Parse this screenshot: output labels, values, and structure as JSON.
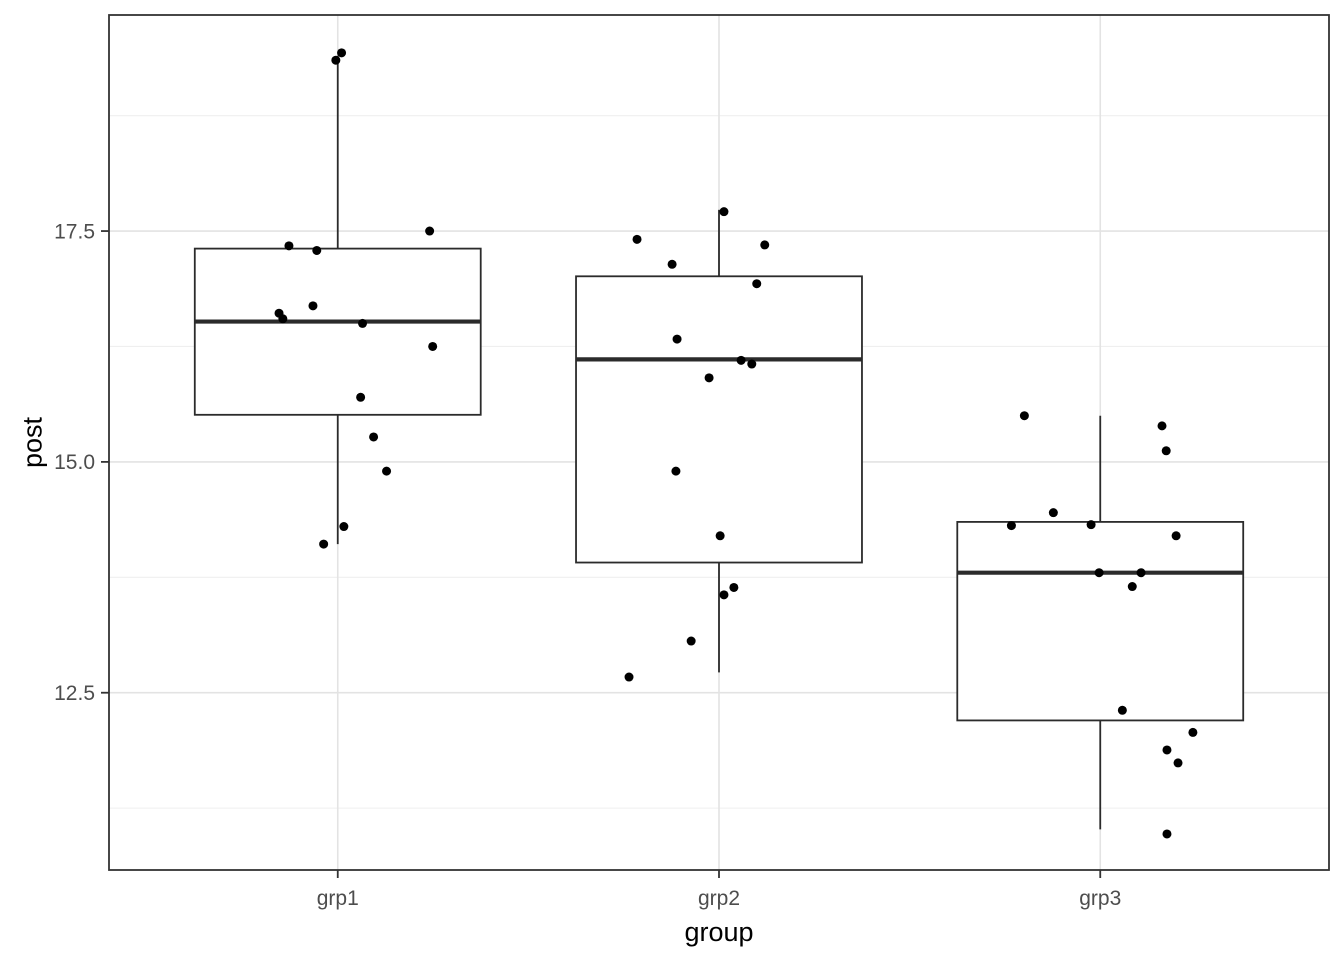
{
  "chart_data": {
    "type": "boxplot",
    "subtype": "boxplot_with_jittered_points",
    "title": "",
    "xlabel": "group",
    "ylabel": "post",
    "categories": [
      "grp1",
      "grp2",
      "grp3"
    ],
    "x_positions": [
      1,
      2,
      3
    ],
    "xlim": [
      0.4,
      3.6
    ],
    "ylim": [
      10.58,
      19.84
    ],
    "y_major_ticks": [
      12.5,
      15.0,
      17.5
    ],
    "y_tick_labels": [
      "12.5",
      "15.0",
      "17.5"
    ],
    "y_minor_gridlines": [
      11.25,
      13.75,
      16.25,
      18.75
    ],
    "grid": {
      "horizontal_major": true,
      "horizontal_minor": true,
      "vertical_major": true,
      "vertical_minor": false
    },
    "legend": "none",
    "box_width": 0.75,
    "boxes": [
      {
        "group": "grp1",
        "x": 1,
        "lower_whisker": 14.11,
        "q1": 15.51,
        "median": 16.52,
        "q3": 17.31,
        "upper_whisker": 19.4
      },
      {
        "group": "grp2",
        "x": 2,
        "lower_whisker": 12.72,
        "q1": 13.91,
        "median": 16.11,
        "q3": 17.01,
        "upper_whisker": 17.73
      },
      {
        "group": "grp3",
        "x": 3,
        "lower_whisker": 11.02,
        "q1": 12.2,
        "median": 13.8,
        "q3": 14.35,
        "upper_whisker": 15.5
      }
    ],
    "points": [
      {
        "group": "grp1",
        "x": 1.01,
        "y": 19.43
      },
      {
        "group": "grp1",
        "x": 0.995,
        "y": 19.35
      },
      {
        "group": "grp1",
        "x": 1.241,
        "y": 17.5
      },
      {
        "group": "grp1",
        "x": 0.872,
        "y": 17.34
      },
      {
        "group": "grp1",
        "x": 0.945,
        "y": 17.29
      },
      {
        "group": "grp1",
        "x": 0.935,
        "y": 16.69
      },
      {
        "group": "grp1",
        "x": 0.846,
        "y": 16.61
      },
      {
        "group": "grp1",
        "x": 0.856,
        "y": 16.55
      },
      {
        "group": "grp1",
        "x": 1.065,
        "y": 16.5
      },
      {
        "group": "grp1",
        "x": 1.249,
        "y": 16.25
      },
      {
        "group": "grp1",
        "x": 1.06,
        "y": 15.7
      },
      {
        "group": "grp1",
        "x": 1.094,
        "y": 15.27
      },
      {
        "group": "grp1",
        "x": 1.128,
        "y": 14.9
      },
      {
        "group": "grp1",
        "x": 1.016,
        "y": 14.3
      },
      {
        "group": "grp1",
        "x": 0.963,
        "y": 14.11
      },
      {
        "group": "grp2",
        "x": 2.013,
        "y": 17.71
      },
      {
        "group": "grp2",
        "x": 1.785,
        "y": 17.41
      },
      {
        "group": "grp2",
        "x": 2.12,
        "y": 17.35
      },
      {
        "group": "grp2",
        "x": 1.877,
        "y": 17.14
      },
      {
        "group": "grp2",
        "x": 2.099,
        "y": 16.93
      },
      {
        "group": "grp2",
        "x": 1.89,
        "y": 16.33
      },
      {
        "group": "grp2",
        "x": 2.058,
        "y": 16.1
      },
      {
        "group": "grp2",
        "x": 2.086,
        "y": 16.06
      },
      {
        "group": "grp2",
        "x": 1.974,
        "y": 15.91
      },
      {
        "group": "grp2",
        "x": 1.887,
        "y": 14.9
      },
      {
        "group": "grp2",
        "x": 2.003,
        "y": 14.2
      },
      {
        "group": "grp2",
        "x": 2.039,
        "y": 13.64
      },
      {
        "group": "grp2",
        "x": 2.013,
        "y": 13.56
      },
      {
        "group": "grp2",
        "x": 1.927,
        "y": 13.06
      },
      {
        "group": "grp2",
        "x": 1.764,
        "y": 12.67
      },
      {
        "group": "grp3",
        "x": 2.801,
        "y": 15.5
      },
      {
        "group": "grp3",
        "x": 3.162,
        "y": 15.39
      },
      {
        "group": "grp3",
        "x": 3.173,
        "y": 15.12
      },
      {
        "group": "grp3",
        "x": 2.877,
        "y": 14.45
      },
      {
        "group": "grp3",
        "x": 2.976,
        "y": 14.32
      },
      {
        "group": "grp3",
        "x": 2.767,
        "y": 14.31
      },
      {
        "group": "grp3",
        "x": 3.199,
        "y": 14.2
      },
      {
        "group": "grp3",
        "x": 2.997,
        "y": 13.8
      },
      {
        "group": "grp3",
        "x": 3.107,
        "y": 13.8
      },
      {
        "group": "grp3",
        "x": 3.084,
        "y": 13.65
      },
      {
        "group": "grp3",
        "x": 3.058,
        "y": 12.31
      },
      {
        "group": "grp3",
        "x": 3.243,
        "y": 12.07
      },
      {
        "group": "grp3",
        "x": 3.175,
        "y": 11.88
      },
      {
        "group": "grp3",
        "x": 3.204,
        "y": 11.74
      },
      {
        "group": "grp3",
        "x": 3.175,
        "y": 10.97
      }
    ],
    "style": {
      "panel_background": "#FFFFFF",
      "figure_background": "#FFFFFF",
      "grid_major_color": "#E3E3E3",
      "grid_minor_color": "#EFEFEF",
      "panel_border_color": "#333333",
      "box_stroke_color": "#2B2B2B",
      "box_fill_color": "#FFFFFF",
      "median_color": "#2B2B2B",
      "whisker_color": "#2B2B2B",
      "point_color": "#000000",
      "tick_mark_color": "#333333",
      "tick_label_color": "#4D4D4D",
      "axis_title_color": "#000000"
    }
  }
}
